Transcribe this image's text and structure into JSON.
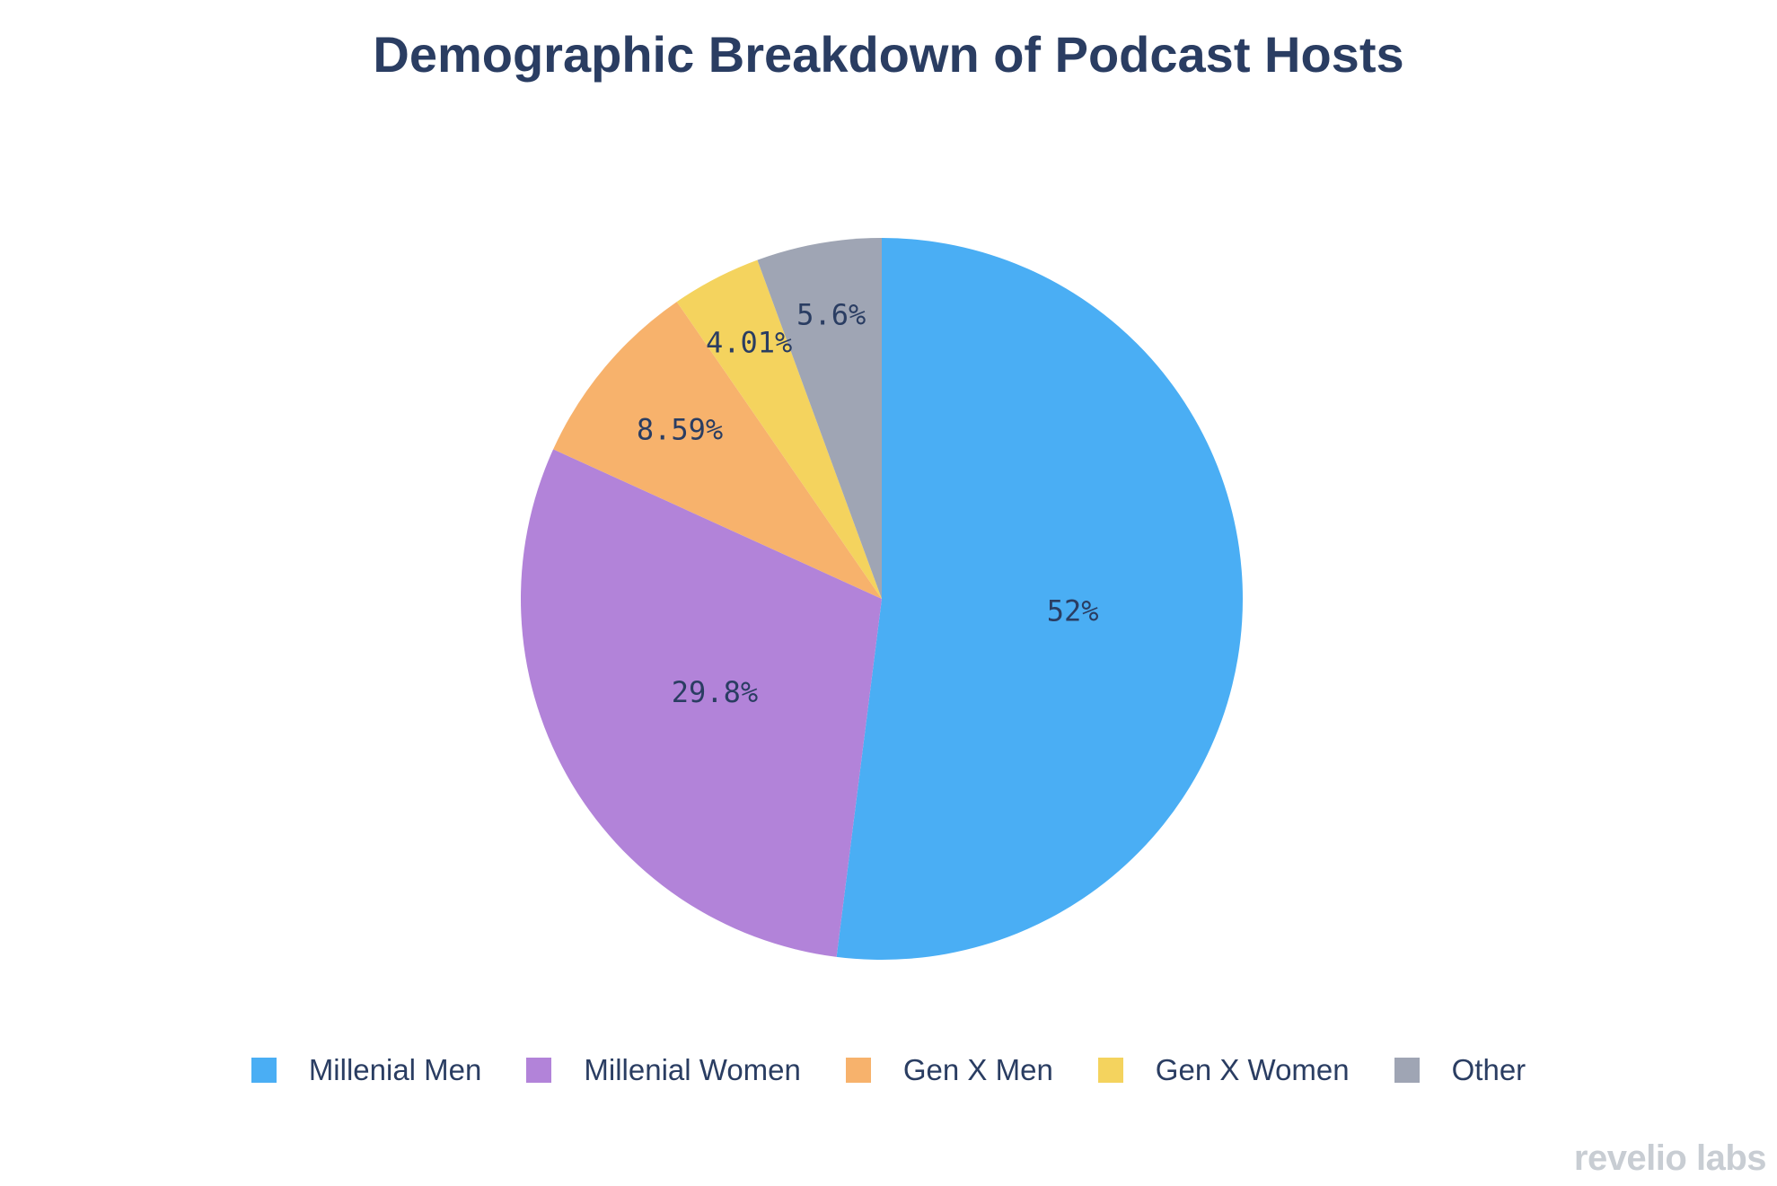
{
  "chart_data": {
    "type": "pie",
    "title": "Demographic Breakdown of Podcast Hosts",
    "slices": [
      {
        "name": "Millenial Men",
        "value": 52,
        "label": "52%",
        "color": "#4aaef4"
      },
      {
        "name": "Millenial Women",
        "value": 29.8,
        "label": "29.8%",
        "color": "#b283d9"
      },
      {
        "name": "Gen X Men",
        "value": 8.59,
        "label": "8.59%",
        "color": "#f7b26c"
      },
      {
        "name": "Gen X Women",
        "value": 4.01,
        "label": "4.01%",
        "color": "#f4d35e"
      },
      {
        "name": "Other",
        "value": 5.6,
        "label": "5.6%",
        "color": "#9fa5b4"
      }
    ],
    "start": "top",
    "direction": "clockwise",
    "legend_position": "bottom"
  },
  "branding": {
    "text": "revelio labs"
  }
}
